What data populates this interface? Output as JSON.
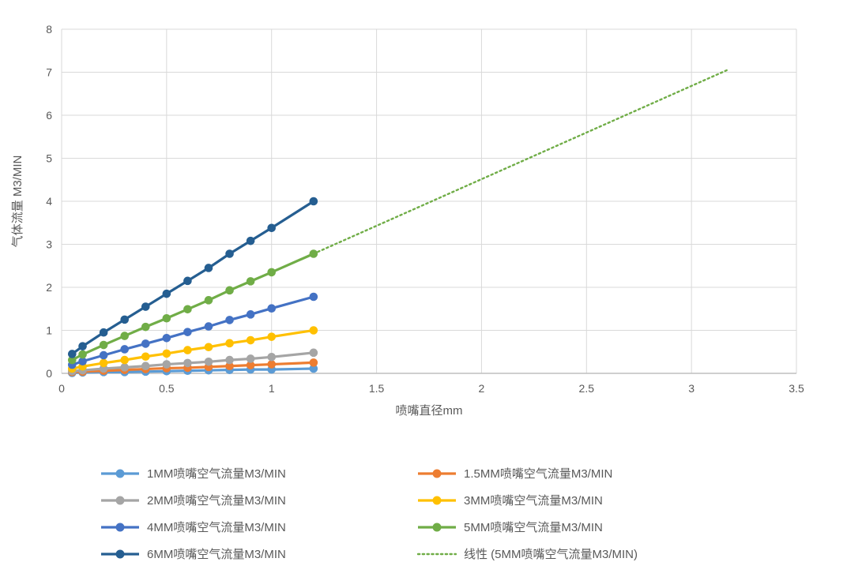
{
  "colors": {
    "grid": "#D9D9D9",
    "axis": "#BFBFBF",
    "text": "#595959",
    "background": "#FFFFFF"
  },
  "chart_data": {
    "type": "line",
    "title": "",
    "xlabel": "喷嘴直径mm",
    "ylabel": "气体流量 M3/MIN",
    "xlim": [
      0,
      3.5
    ],
    "ylim": [
      0,
      8
    ],
    "x_ticks": [
      "0",
      "0.5",
      "1",
      "1.5",
      "2",
      "2.5",
      "3",
      "3.5"
    ],
    "y_ticks": [
      "0",
      "1",
      "2",
      "3",
      "4",
      "5",
      "6",
      "7",
      "8"
    ],
    "grid": true,
    "legend_position": "bottom",
    "x": [
      0.05,
      0.1,
      0.2,
      0.3,
      0.4,
      0.5,
      0.6,
      0.7,
      0.8,
      0.9,
      1.0,
      1.2
    ],
    "series": [
      {
        "name": "1MM喷嘴空气流量M3/MIN",
        "color": "#5B9BD5",
        "type": "line-marker",
        "values": [
          0.01,
          0.02,
          0.03,
          0.03,
          0.04,
          0.05,
          0.06,
          0.07,
          0.08,
          0.09,
          0.09,
          0.11
        ]
      },
      {
        "name": "1.5MM喷嘴空气流量M3/MIN",
        "color": "#ED7D31",
        "type": "line-marker",
        "values": [
          0.03,
          0.04,
          0.06,
          0.08,
          0.1,
          0.12,
          0.13,
          0.15,
          0.17,
          0.19,
          0.21,
          0.25
        ]
      },
      {
        "name": "2MM喷嘴空气流量M3/MIN",
        "color": "#A5A5A5",
        "type": "line-marker",
        "values": [
          0.05,
          0.07,
          0.11,
          0.14,
          0.17,
          0.21,
          0.24,
          0.27,
          0.31,
          0.34,
          0.38,
          0.48
        ]
      },
      {
        "name": "3MM喷嘴空气流量M3/MIN",
        "color": "#FFC000",
        "type": "line-marker",
        "values": [
          0.11,
          0.16,
          0.24,
          0.31,
          0.39,
          0.46,
          0.54,
          0.61,
          0.7,
          0.77,
          0.85,
          1.0
        ]
      },
      {
        "name": "4MM喷嘴空气流量M3/MIN",
        "color": "#4472C4",
        "type": "line-marker",
        "values": [
          0.2,
          0.28,
          0.42,
          0.56,
          0.69,
          0.82,
          0.96,
          1.09,
          1.24,
          1.37,
          1.51,
          1.78
        ]
      },
      {
        "name": "5MM喷嘴空气流量M3/MIN",
        "color": "#70AD47",
        "type": "line-marker",
        "values": [
          0.31,
          0.44,
          0.66,
          0.87,
          1.08,
          1.28,
          1.49,
          1.7,
          1.93,
          2.14,
          2.35,
          2.78
        ]
      },
      {
        "name": "6MM喷嘴空气流量M3/MIN",
        "color": "#255E91",
        "type": "line-marker",
        "values": [
          0.45,
          0.63,
          0.95,
          1.25,
          1.55,
          1.85,
          2.15,
          2.45,
          2.78,
          3.08,
          3.38,
          4.0
        ]
      },
      {
        "name": "线性 (5MM喷嘴空气流量M3/MIN)",
        "color": "#70AD47",
        "type": "trend",
        "x": [
          1.2,
          3.17
        ],
        "values": [
          2.78,
          7.05
        ]
      }
    ]
  }
}
